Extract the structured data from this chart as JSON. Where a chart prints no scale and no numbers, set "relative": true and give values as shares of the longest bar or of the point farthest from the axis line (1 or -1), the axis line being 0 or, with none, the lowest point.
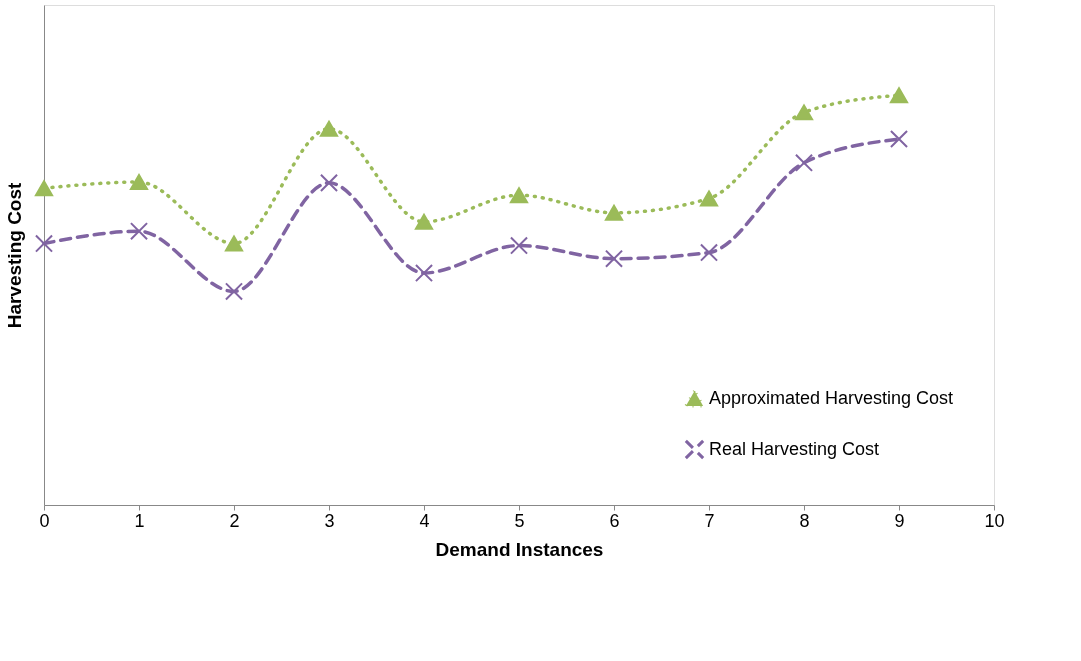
{
  "chart_data": {
    "type": "line",
    "xlabel": "Demand Instances",
    "ylabel": "Harvesting Cost",
    "relative": true,
    "x": [
      0,
      1,
      2,
      3,
      4,
      5,
      6,
      7,
      8,
      9
    ],
    "xlim": [
      0,
      10
    ],
    "xticks": [
      0,
      1,
      2,
      3,
      4,
      5,
      6,
      7,
      8,
      9,
      10
    ],
    "series": [
      {
        "name": "Approximated Harvesting Cost",
        "color": "#9bbb59",
        "marker": "triangle",
        "line_style": "dotted",
        "values": [
          0.773,
          0.788,
          0.638,
          0.918,
          0.691,
          0.756,
          0.713,
          0.748,
          0.958,
          1.0
        ]
      },
      {
        "name": "Real Harvesting Cost",
        "color": "#8064a2",
        "marker": "cross",
        "line_style": "dashed",
        "values": [
          0.638,
          0.668,
          0.521,
          0.786,
          0.566,
          0.633,
          0.601,
          0.616,
          0.835,
          0.893
        ]
      }
    ],
    "grid": false,
    "legend": "bottom right"
  }
}
